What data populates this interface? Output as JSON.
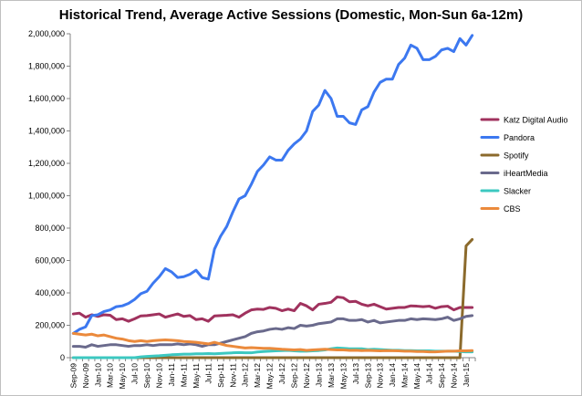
{
  "chart_data": {
    "type": "line",
    "title": "Historical Trend, Average Active Sessions (Domestic, Mon-Sun 6a-12m)",
    "ylim": [
      0,
      2000000
    ],
    "y_ticks": [
      "0",
      "200,000",
      "400,000",
      "600,000",
      "800,000",
      "1,000,000",
      "1,200,000",
      "1,400,000",
      "1,600,000",
      "1,800,000",
      "2,000,000"
    ],
    "x": [
      "Sep-09",
      "Oct-09",
      "Nov-09",
      "Dec-09",
      "Jan-10",
      "Feb-10",
      "Mar-10",
      "Apr-10",
      "May-10",
      "Jun-10",
      "Jul-10",
      "Aug-10",
      "Sep-10",
      "Oct-10",
      "Nov-10",
      "Dec-10",
      "Jan-11",
      "Feb-11",
      "Mar-11",
      "Apr-11",
      "May-11",
      "Jun-11",
      "Jul-11",
      "Aug-11",
      "Sep-11",
      "Oct-11",
      "Nov-11",
      "Dec-11",
      "Jan-12",
      "Feb-12",
      "Mar-12",
      "Apr-12",
      "May-12",
      "Jun-12",
      "Jul-12",
      "Aug-12",
      "Sep-12",
      "Oct-12",
      "Nov-12",
      "Dec-12",
      "Jan-13",
      "Feb-13",
      "Mar-13",
      "Apr-13",
      "May-13",
      "Jun-13",
      "Jul-13",
      "Aug-13",
      "Sep-13",
      "Oct-13",
      "Nov-13",
      "Dec-13",
      "Jan-14",
      "Feb-14",
      "Mar-14",
      "Apr-14",
      "May-14",
      "Jun-14",
      "Jul-14",
      "Aug-14",
      "Sep-14",
      "Oct-14",
      "Nov-14",
      "Dec-14",
      "Jan-15",
      "Feb-15"
    ],
    "x_tick_labels": [
      "Sep-09",
      "Nov-09",
      "Jan-10",
      "Mar-10",
      "May-10",
      "Jul-10",
      "Sep-10",
      "Nov-10",
      "Jan-11",
      "Mar-11",
      "May-11",
      "Jul-11",
      "Sep-11",
      "Nov-11",
      "Jan-12",
      "Mar-12",
      "May-12",
      "Jul-12",
      "Sep-12",
      "Nov-12",
      "Jan-13",
      "Mar-13",
      "May-13",
      "Jul-13",
      "Sep-13",
      "Nov-13",
      "Jan-14",
      "Mar-14",
      "May-14",
      "Jul-14",
      "Sep-14",
      "Nov-14",
      "Jan-15"
    ],
    "legend_position": "right",
    "grid": false,
    "series": [
      {
        "name": "Katz Digital Audio",
        "color": "#A0325E",
        "values": [
          270000,
          275000,
          250000,
          265000,
          255000,
          265000,
          262000,
          235000,
          240000,
          225000,
          240000,
          258000,
          260000,
          265000,
          270000,
          250000,
          260000,
          270000,
          255000,
          260000,
          235000,
          240000,
          225000,
          258000,
          260000,
          262000,
          265000,
          250000,
          275000,
          295000,
          300000,
          298000,
          310000,
          305000,
          290000,
          300000,
          290000,
          335000,
          320000,
          295000,
          330000,
          335000,
          342000,
          375000,
          370000,
          345000,
          348000,
          330000,
          320000,
          330000,
          315000,
          300000,
          305000,
          310000,
          310000,
          320000,
          318000,
          315000,
          318000,
          305000,
          315000,
          318000,
          295000,
          310000,
          310000,
          310000
        ]
      },
      {
        "name": "Pandora",
        "color": "#3C78F0",
        "values": [
          150000,
          175000,
          190000,
          260000,
          265000,
          285000,
          295000,
          315000,
          320000,
          335000,
          360000,
          395000,
          410000,
          460000,
          500000,
          550000,
          530000,
          495000,
          500000,
          515000,
          540000,
          495000,
          485000,
          670000,
          750000,
          810000,
          900000,
          980000,
          1000000,
          1070000,
          1150000,
          1190000,
          1240000,
          1220000,
          1220000,
          1280000,
          1320000,
          1350000,
          1400000,
          1520000,
          1560000,
          1650000,
          1600000,
          1490000,
          1490000,
          1450000,
          1440000,
          1530000,
          1550000,
          1640000,
          1700000,
          1720000,
          1720000,
          1810000,
          1850000,
          1930000,
          1910000,
          1840000,
          1840000,
          1860000,
          1900000,
          1910000,
          1890000,
          1970000,
          1930000,
          1990000
        ]
      },
      {
        "name": "Spotify",
        "color": "#8B6A2C",
        "values": [
          0,
          0,
          0,
          0,
          0,
          0,
          0,
          0,
          0,
          0,
          0,
          0,
          0,
          0,
          0,
          0,
          0,
          0,
          0,
          0,
          0,
          0,
          0,
          0,
          0,
          0,
          0,
          0,
          0,
          0,
          0,
          0,
          0,
          0,
          0,
          0,
          0,
          0,
          0,
          0,
          0,
          0,
          0,
          0,
          0,
          0,
          0,
          0,
          0,
          0,
          0,
          0,
          0,
          0,
          0,
          0,
          0,
          0,
          0,
          0,
          0,
          0,
          0,
          0,
          690000,
          730000
        ]
      },
      {
        "name": "iHeartMedia",
        "color": "#6A6A8C",
        "values": [
          70000,
          70000,
          65000,
          80000,
          70000,
          75000,
          80000,
          80000,
          75000,
          70000,
          75000,
          75000,
          80000,
          75000,
          80000,
          80000,
          80000,
          85000,
          80000,
          85000,
          80000,
          70000,
          80000,
          80000,
          90000,
          100000,
          110000,
          120000,
          130000,
          150000,
          160000,
          165000,
          175000,
          180000,
          175000,
          185000,
          180000,
          200000,
          195000,
          200000,
          210000,
          215000,
          220000,
          240000,
          240000,
          230000,
          230000,
          235000,
          220000,
          230000,
          215000,
          220000,
          225000,
          230000,
          230000,
          240000,
          235000,
          240000,
          238000,
          235000,
          240000,
          250000,
          230000,
          240000,
          255000,
          260000
        ]
      },
      {
        "name": "Slacker",
        "color": "#3CC8C0",
        "values": [
          0,
          0,
          0,
          0,
          0,
          0,
          0,
          0,
          0,
          0,
          0,
          5000,
          8000,
          10000,
          12000,
          15000,
          18000,
          20000,
          22000,
          22000,
          24000,
          24000,
          25000,
          24000,
          26000,
          28000,
          30000,
          32000,
          30000,
          30000,
          35000,
          38000,
          40000,
          42000,
          44000,
          45000,
          42000,
          40000,
          40000,
          42000,
          44000,
          48000,
          55000,
          60000,
          58000,
          55000,
          55000,
          55000,
          50000,
          52000,
          50000,
          48000,
          46000,
          46000,
          44000,
          44000,
          42000,
          42000,
          42000,
          40000,
          40000,
          40000,
          40000,
          38000,
          36000,
          36000
        ]
      },
      {
        "name": "CBS",
        "color": "#EB8A3C",
        "values": [
          150000,
          145000,
          140000,
          145000,
          135000,
          140000,
          130000,
          120000,
          115000,
          105000,
          100000,
          105000,
          100000,
          105000,
          108000,
          110000,
          108000,
          105000,
          100000,
          98000,
          95000,
          90000,
          85000,
          95000,
          85000,
          75000,
          70000,
          65000,
          60000,
          62000,
          60000,
          58000,
          58000,
          55000,
          52000,
          50000,
          48000,
          50000,
          45000,
          48000,
          50000,
          52000,
          50000,
          48000,
          48000,
          45000,
          46000,
          44000,
          45000,
          44000,
          42000,
          44000,
          43000,
          42000,
          40000,
          40000,
          38000,
          38000,
          36000,
          36000,
          38000,
          40000,
          40000,
          42000,
          42000,
          44000
        ]
      }
    ]
  }
}
